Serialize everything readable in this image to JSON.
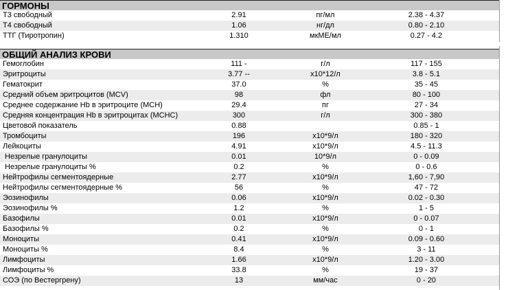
{
  "sections": [
    {
      "title": "ГОРМОНЫ",
      "rows": [
        {
          "name": "Т3 свободный",
          "value": "2.91",
          "unit": "пг/мл",
          "ref": "2.38 - 4.37"
        },
        {
          "name": "Т4 свободный",
          "value": "1.06",
          "unit": "нг/дл",
          "ref": "0.80 - 2.10"
        },
        {
          "name": "ТТГ (Тиротропин)",
          "value": "1.310",
          "unit": "мкМЕ/мл",
          "ref": "0.27 - 4.2"
        }
      ]
    },
    {
      "title": "ОБЩИЙ АНАЛИЗ КРОВИ",
      "rows": [
        {
          "name": "Гемоглобин",
          "value": "111 -",
          "unit": "г/л",
          "ref": "117 - 155"
        },
        {
          "name": "Эритроциты",
          "value": "3.77 --",
          "unit": "x10*12/л",
          "ref": "3.8 - 5.1"
        },
        {
          "name": "Гематокрит",
          "value": "37.0",
          "unit": "%",
          "ref": "35 - 45"
        },
        {
          "name": "Средний объем эритроцитов (MCV)",
          "value": "98",
          "unit": "фл",
          "ref": "80 - 100"
        },
        {
          "name": "Среднее содержание Hb в эритроците (MCH)",
          "value": "29.4",
          "unit": "пг",
          "ref": "27 - 34"
        },
        {
          "name": "Средняя концентрация Hb в эритроцитах (MCHC)",
          "value": "300",
          "unit": "г/л",
          "ref": "300 - 380"
        },
        {
          "name": "Цветовой показатель",
          "value": "0.88",
          "unit": "",
          "ref": "0.85 - 1"
        },
        {
          "name": "Тромбоциты",
          "value": "196",
          "unit": "x10*9/л",
          "ref": "180 - 320"
        },
        {
          "name": "Лейкоциты",
          "value": "4.91",
          "unit": "x10*9/л",
          "ref": "4.5 - 11.3"
        },
        {
          "name": " Незрелые гранулоциты",
          "value": "0.01",
          "unit": "10*9/л",
          "ref": "0 - 0.09"
        },
        {
          "name": " Незрелые гранулоциты %",
          "value": "0.2",
          "unit": "%",
          "ref": "0 - 0.6"
        },
        {
          "name": "Нейтрофилы сегментоядерные",
          "value": "2.77",
          "unit": "x10*9/л",
          "ref": "1,60 - 7,90"
        },
        {
          "name": "Нейтрофилы сегментоядерные %",
          "value": "56",
          "unit": "%",
          "ref": "47 - 72"
        },
        {
          "name": "Эозинофилы",
          "value": "0.06",
          "unit": "x10*9/л",
          "ref": "0.02 - 0.30"
        },
        {
          "name": "Эозинофилы %",
          "value": "1.2",
          "unit": "%",
          "ref": "1 - 5"
        },
        {
          "name": "Базофилы",
          "value": "0.01",
          "unit": "x10*9/л",
          "ref": "0 - 0.07"
        },
        {
          "name": "Базофилы %",
          "value": "0.2",
          "unit": "%",
          "ref": "0 - 1"
        },
        {
          "name": "Моноциты",
          "value": "0.41",
          "unit": "x10*9/л",
          "ref": "0.09 - 0.60"
        },
        {
          "name": "Моноциты %",
          "value": "8.4",
          "unit": "%",
          "ref": "3 - 11"
        },
        {
          "name": "Лимфоциты",
          "value": "1.66",
          "unit": "x10*9/л",
          "ref": "1.20 - 3.00"
        },
        {
          "name": "Лимфоциты %",
          "value": "33.8",
          "unit": "%",
          "ref": "19 - 37"
        },
        {
          "name": "СОЭ (по Вестергрену)",
          "value": "13",
          "unit": "мм/час",
          "ref": "0 - 20"
        }
      ]
    }
  ]
}
